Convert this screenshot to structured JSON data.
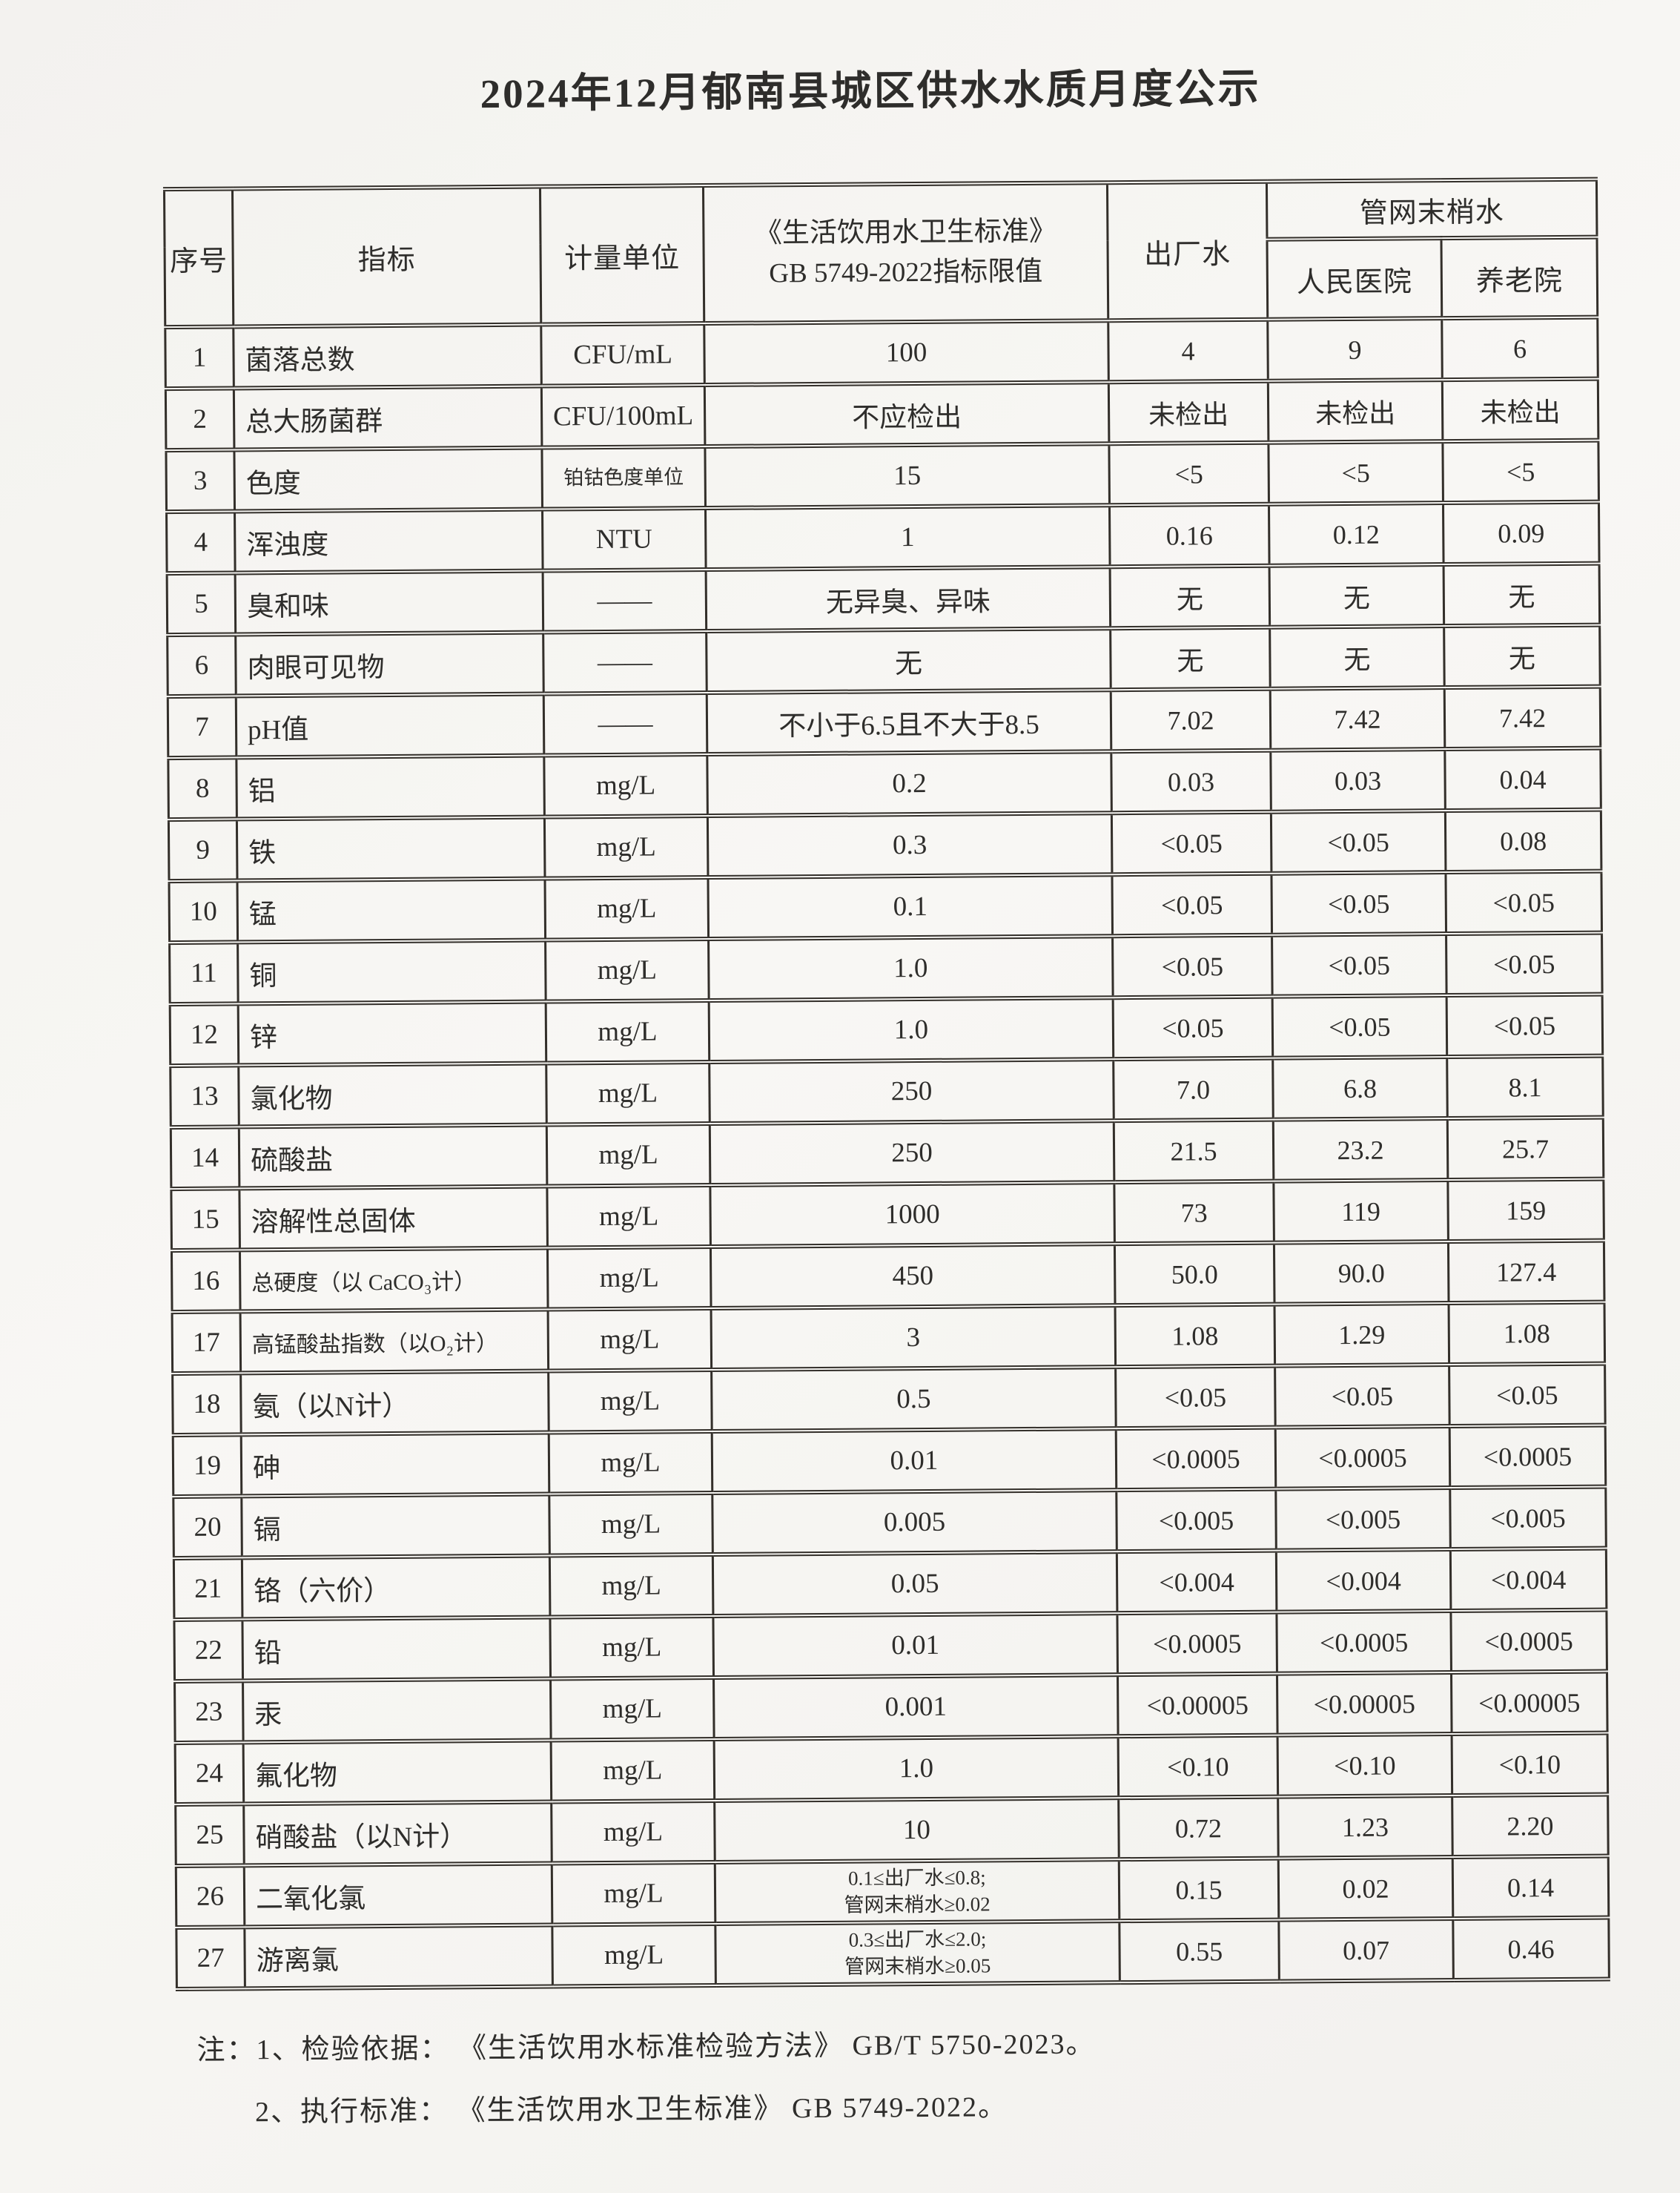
{
  "page": {
    "title": "2024年12月郁南县城区供水水质月度公示"
  },
  "table": {
    "headers": {
      "no": "序号",
      "indicator": "指标",
      "unit": "计量单位",
      "limit": "《生活饮用水卫生标准》\nGB 5749-2022指标限值",
      "factory": "出厂水",
      "network": "管网末梢水",
      "hospital": "人民医院",
      "nursing": "养老院"
    },
    "rows": [
      {
        "no": "1",
        "indicator": "菌落总数",
        "unit": "CFU/mL",
        "limit": "100",
        "factory": "4",
        "hospital": "9",
        "nursing": "6"
      },
      {
        "no": "2",
        "indicator": "总大肠菌群",
        "unit": "CFU/100mL",
        "limit": "不应检出",
        "factory": "未检出",
        "hospital": "未检出",
        "nursing": "未检出"
      },
      {
        "no": "3",
        "indicator": "色度",
        "unit": "铂钴色度单位",
        "limit": "15",
        "factory": "<5",
        "hospital": "<5",
        "nursing": "<5"
      },
      {
        "no": "4",
        "indicator": "浑浊度",
        "unit": "NTU",
        "limit": "1",
        "factory": "0.16",
        "hospital": "0.12",
        "nursing": "0.09"
      },
      {
        "no": "5",
        "indicator": "臭和味",
        "unit": "——",
        "limit": "无异臭、异味",
        "factory": "无",
        "hospital": "无",
        "nursing": "无"
      },
      {
        "no": "6",
        "indicator": "肉眼可见物",
        "unit": "——",
        "limit": "无",
        "factory": "无",
        "hospital": "无",
        "nursing": "无"
      },
      {
        "no": "7",
        "indicator": "pH值",
        "unit": "——",
        "limit": "不小于6.5且不大于8.5",
        "factory": "7.02",
        "hospital": "7.42",
        "nursing": "7.42"
      },
      {
        "no": "8",
        "indicator": "铝",
        "unit": "mg/L",
        "limit": "0.2",
        "factory": "0.03",
        "hospital": "0.03",
        "nursing": "0.04"
      },
      {
        "no": "9",
        "indicator": "铁",
        "unit": "mg/L",
        "limit": "0.3",
        "factory": "<0.05",
        "hospital": "<0.05",
        "nursing": "0.08"
      },
      {
        "no": "10",
        "indicator": "锰",
        "unit": "mg/L",
        "limit": "0.1",
        "factory": "<0.05",
        "hospital": "<0.05",
        "nursing": "<0.05"
      },
      {
        "no": "11",
        "indicator": "铜",
        "unit": "mg/L",
        "limit": "1.0",
        "factory": "<0.05",
        "hospital": "<0.05",
        "nursing": "<0.05"
      },
      {
        "no": "12",
        "indicator": "锌",
        "unit": "mg/L",
        "limit": "1.0",
        "factory": "<0.05",
        "hospital": "<0.05",
        "nursing": "<0.05"
      },
      {
        "no": "13",
        "indicator": "氯化物",
        "unit": "mg/L",
        "limit": "250",
        "factory": "7.0",
        "hospital": "6.8",
        "nursing": "8.1"
      },
      {
        "no": "14",
        "indicator": "硫酸盐",
        "unit": "mg/L",
        "limit": "250",
        "factory": "21.5",
        "hospital": "23.2",
        "nursing": "25.7"
      },
      {
        "no": "15",
        "indicator": "溶解性总固体",
        "unit": "mg/L",
        "limit": "1000",
        "factory": "73",
        "hospital": "119",
        "nursing": "159"
      },
      {
        "no": "16",
        "indicator": "总硬度（以 CaCO₃计）",
        "unit": "mg/L",
        "limit": "450",
        "factory": "50.0",
        "hospital": "90.0",
        "nursing": "127.4"
      },
      {
        "no": "17",
        "indicator": "高锰酸盐指数（以O₂计）",
        "unit": "mg/L",
        "limit": "3",
        "factory": "1.08",
        "hospital": "1.29",
        "nursing": "1.08"
      },
      {
        "no": "18",
        "indicator": "氨（以N计）",
        "unit": "mg/L",
        "limit": "0.5",
        "factory": "<0.05",
        "hospital": "<0.05",
        "nursing": "<0.05"
      },
      {
        "no": "19",
        "indicator": "砷",
        "unit": "mg/L",
        "limit": "0.01",
        "factory": "<0.0005",
        "hospital": "<0.0005",
        "nursing": "<0.0005"
      },
      {
        "no": "20",
        "indicator": "镉",
        "unit": "mg/L",
        "limit": "0.005",
        "factory": "<0.005",
        "hospital": "<0.005",
        "nursing": "<0.005"
      },
      {
        "no": "21",
        "indicator": "铬（六价）",
        "unit": "mg/L",
        "limit": "0.05",
        "factory": "<0.004",
        "hospital": "<0.004",
        "nursing": "<0.004"
      },
      {
        "no": "22",
        "indicator": "铅",
        "unit": "mg/L",
        "limit": "0.01",
        "factory": "<0.0005",
        "hospital": "<0.0005",
        "nursing": "<0.0005"
      },
      {
        "no": "23",
        "indicator": "汞",
        "unit": "mg/L",
        "limit": "0.001",
        "factory": "<0.00005",
        "hospital": "<0.00005",
        "nursing": "<0.00005"
      },
      {
        "no": "24",
        "indicator": "氟化物",
        "unit": "mg/L",
        "limit": "1.0",
        "factory": "<0.10",
        "hospital": "<0.10",
        "nursing": "<0.10"
      },
      {
        "no": "25",
        "indicator": "硝酸盐（以N计）",
        "unit": "mg/L",
        "limit": "10",
        "factory": "0.72",
        "hospital": "1.23",
        "nursing": "2.20"
      },
      {
        "no": "26",
        "indicator": "二氧化氯",
        "unit": "mg/L",
        "limit": "0.1≤出厂水≤0.8;\n管网末梢水≥0.02",
        "factory": "0.15",
        "hospital": "0.02",
        "nursing": "0.14"
      },
      {
        "no": "27",
        "indicator": "游离氯",
        "unit": "mg/L",
        "limit": "0.3≤出厂水≤2.0;\n管网末梢水≥0.05",
        "factory": "0.55",
        "hospital": "0.07",
        "nursing": "0.46"
      }
    ]
  },
  "notes": {
    "prefix": "注：",
    "items": [
      "1、检验依据： 《生活饮用水标准检验方法》 GB/T 5750-2023。",
      "2、执行标准： 《生活饮用水卫生标准》 GB 5749-2022。"
    ]
  }
}
